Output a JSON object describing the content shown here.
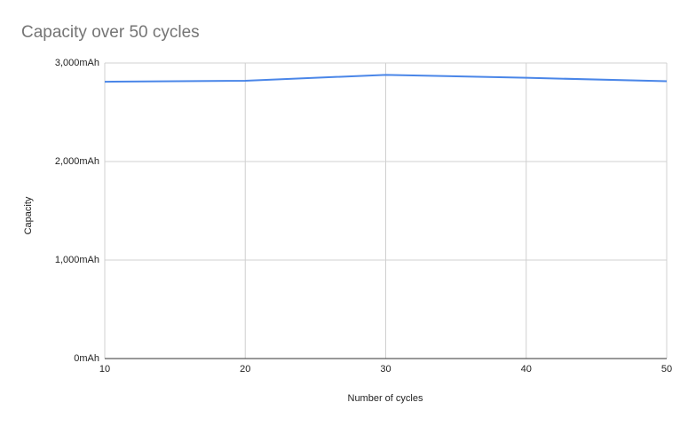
{
  "chart_data": {
    "type": "line",
    "title": "Capacity over 50 cycles",
    "x_label": "Number of cycles",
    "y_label": "Capacity",
    "x": [
      10,
      20,
      30,
      40,
      50
    ],
    "series": [
      {
        "name": "Capacity",
        "color": "#4a86e8",
        "values": [
          2810,
          2820,
          2880,
          2850,
          2815
        ]
      }
    ],
    "xlim": [
      10,
      50
    ],
    "xticks": [
      10,
      20,
      30,
      40,
      50
    ],
    "ylim": [
      0,
      3000
    ],
    "yticks": [
      {
        "value": 0,
        "label": "0mAh"
      },
      {
        "value": 1000,
        "label": "1,000mAh"
      },
      {
        "value": 2000,
        "label": "2,000mAh"
      },
      {
        "value": 3000,
        "label": "3,000mAh"
      }
    ],
    "grid": true
  }
}
